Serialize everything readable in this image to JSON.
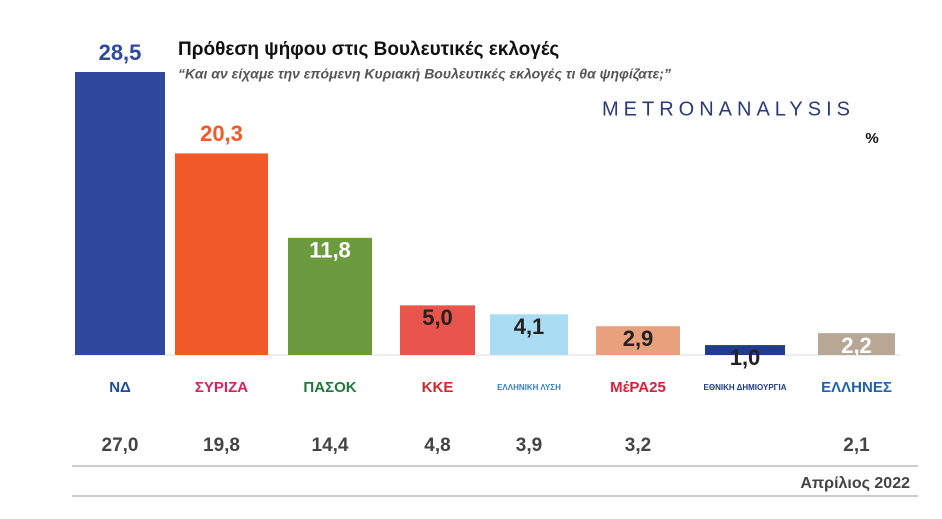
{
  "chart_data": {
    "type": "bar",
    "title": "Πρόθεση ψήφου στις Βουλευτικές εκλογές",
    "subtitle": "“Και αν είχαμε την επόμενη Κυριακή Βουλευτικές εκλογές τι θα ψηφίζατε;”",
    "source": "METRONANALYSIS",
    "unit": "%",
    "date": "Απρίλιος 2022",
    "categories": [
      "ΝΔ",
      "ΣΥΡΙΖΑ",
      "ΠΑΣΟΚ",
      "ΚΚΕ",
      "ΕΛΛΗΝΙΚΗ ΛΥΣΗ",
      "ΜέΡΑ25",
      "ΕΘΝΙΚΗ ΔΗΜΙΟΥΡΓΙΑ",
      "ΕΛΛΗΝΕΣ"
    ],
    "series": [
      {
        "values": [
          28.5,
          20.3,
          11.8,
          5.0,
          4.1,
          2.9,
          1.0,
          2.2
        ],
        "value_labels": [
          "28,5",
          "20,3",
          "11,8",
          "5,0",
          "4,1",
          "2,9",
          "1,0",
          "2,2"
        ],
        "colors": [
          "#2f4a9c",
          "#f05a28",
          "#6b9a3f",
          "#e9544c",
          "#aadcf4",
          "#e9a07c",
          "#223c8a",
          "#b9a796"
        ],
        "label_colors": [
          "#2f4a9c",
          "#f05a28",
          "#ffffff",
          "#222222",
          "#222222",
          "#222222",
          "#222222",
          "#ffffff"
        ]
      },
      {
        "values": [
          27.0,
          19.8,
          14.4,
          4.8,
          3.9,
          3.2,
          null,
          2.1
        ],
        "value_labels": [
          "27,0",
          "19,8",
          "14,4",
          "4,8",
          "3,9",
          "3,2",
          null,
          "2,1"
        ]
      }
    ],
    "logo_colors": [
      "#1e4a9e",
      "#d6245a",
      "#1e7a3a",
      "#d9262a",
      "#3a7fc0",
      "#d61f3a",
      "#1e3a8a",
      "#1e62b0"
    ]
  }
}
